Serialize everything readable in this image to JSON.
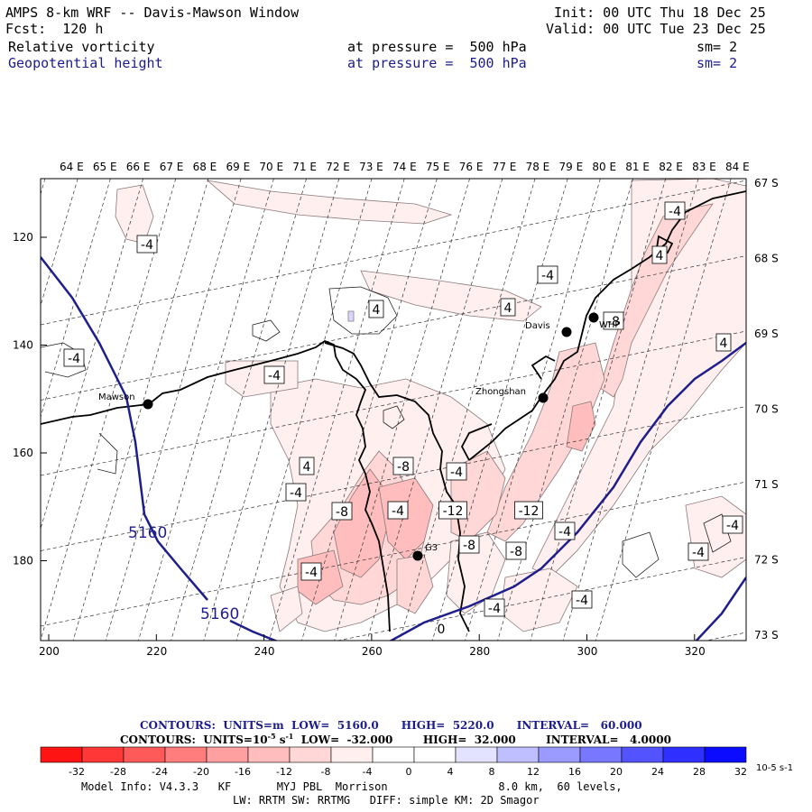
{
  "header": {
    "title": "AMPS 8-km WRF -- Davis-Mawson Window",
    "init": "Init: 00 UTC Thu 18 Dec 25",
    "fcst": "Fcst:  120 h",
    "valid": "Valid: 00 UTC Tue 23 Dec 25",
    "field1": "Relative vorticity",
    "field1_level": "at pressure =  500 hPa",
    "field1_sm": "sm= 2",
    "field2": "Geopotential height",
    "field2_level": "at pressure =  500 hPa",
    "field2_sm": "sm= 2"
  },
  "chart_data": {
    "type": "contour-map",
    "lon_labels": [
      "64 E",
      "65 E",
      "66 E",
      "67 E",
      "68 E",
      "69 E",
      "70 E",
      "71 E",
      "72 E",
      "73 E",
      "74 E",
      "75 E",
      "76 E",
      "77 E",
      "78 E",
      "79 E",
      "80 E",
      "81 E",
      "82 E",
      "83 E",
      "84 E"
    ],
    "lat_labels": [
      "67 S",
      "68 S",
      "69 S",
      "70 S",
      "71 S",
      "72 S",
      "73 S"
    ],
    "x_ticks": [
      "200",
      "220",
      "240",
      "260",
      "280",
      "300",
      "320"
    ],
    "y_ticks": [
      "120",
      "140",
      "160",
      "180"
    ],
    "stations": [
      "Mawson",
      "Davis",
      "WHP",
      "Zhongshan",
      "G3"
    ],
    "height_contour_labels": [
      "5160",
      "5160"
    ],
    "vorticity_labels": [
      "-4",
      "4",
      "-4",
      "-4",
      "-4",
      "4",
      "4",
      "-4",
      "-8",
      "-4",
      "-8",
      "-4",
      "-12",
      "-12",
      "-8",
      "-8",
      "-4",
      "-4",
      "-4",
      "-4",
      "-4",
      "4",
      "4",
      "-4",
      "-4",
      "-8",
      "0"
    ],
    "colorbar": {
      "ticks": [
        "-32",
        "-28",
        "-24",
        "-20",
        "-16",
        "-12",
        "-8",
        "-4",
        "0",
        "4",
        "8",
        "12",
        "16",
        "20",
        "24",
        "28",
        "32"
      ],
      "unit": "10-5 s-1",
      "colors": [
        "#ff1414",
        "#ff3737",
        "#ff5a5a",
        "#ff7d7d",
        "#ffa0a0",
        "#ffbdbd",
        "#ffd7d7",
        "#ffefef",
        "#ffffff",
        "#ffffff",
        "#e3e3ff",
        "#bfbfff",
        "#9b9bff",
        "#7777ff",
        "#5353ff",
        "#2f2fff",
        "#0b0bff"
      ]
    }
  },
  "contours_line1": {
    "label": "CONTOURS:  UNITS=m  LOW=  5160.0      HIGH=  5220.0      INTERVAL=   60.000"
  },
  "contours_line2": {
    "label": "CONTOURS:  UNITS=10",
    "label_exp": "-5",
    "label_unit": " s",
    "label_unit_exp": "-1",
    "label_rest": "  LOW=  -32.000        HIGH=  32.000        INTERVAL=   4.0000"
  },
  "footer": {
    "line1": "Model Info: V4.3.3   KF       MYJ PBL  Morrison                 8.0 km,  60 levels,",
    "line2": "LW: RRTM SW: RRTMG   DIFF: simple KM: 2D Smagor"
  }
}
